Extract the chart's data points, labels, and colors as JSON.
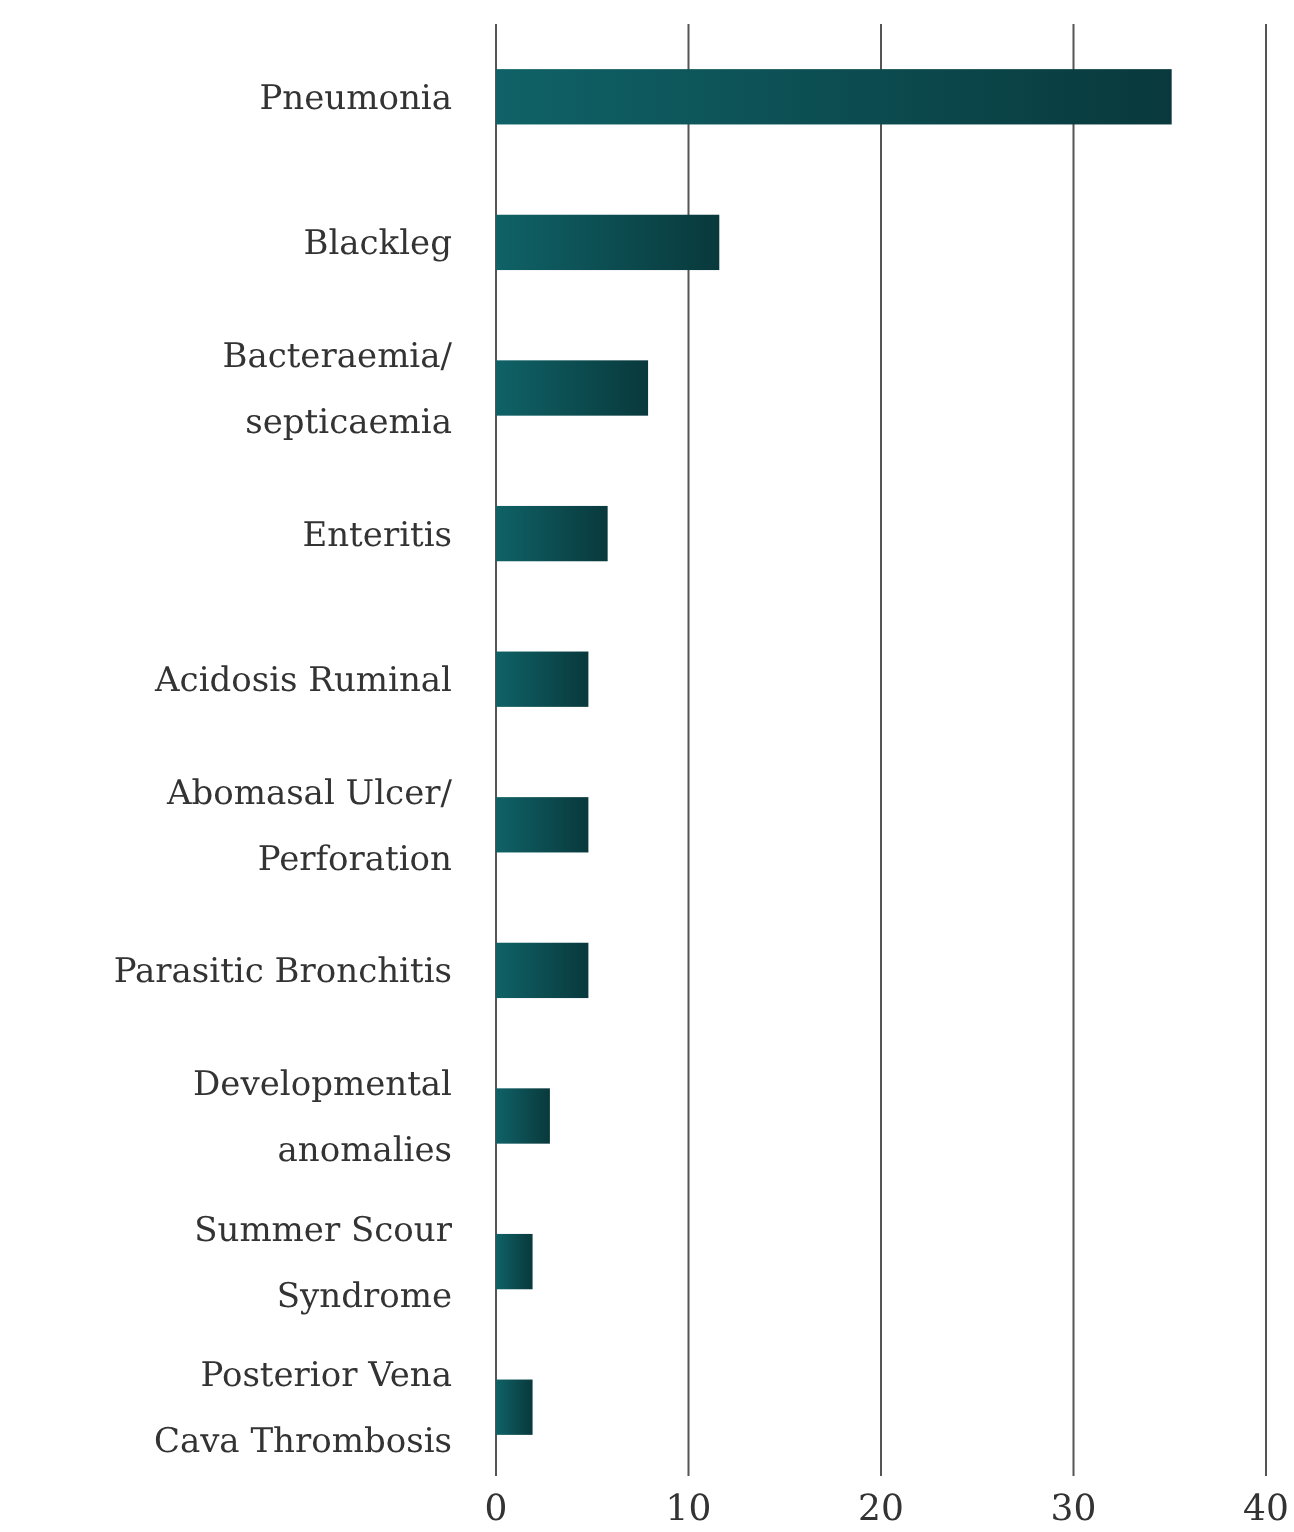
{
  "chart_data": {
    "type": "bar",
    "orientation": "horizontal",
    "categories": [
      "Pneumonia",
      "Blackleg",
      "Bacteraemia/\nsepticaemia",
      "Enteritis",
      "Acidosis Ruminal",
      "Abomasal Ulcer/\nPerforation",
      "Parasitic Bronchitis",
      "Developmental\nanomalies",
      "Summer Scour\nSyndrome",
      "Posterior Vena\nCava Thrombosis"
    ],
    "values": [
      35.1,
      11.6,
      7.9,
      5.8,
      4.8,
      4.8,
      4.8,
      2.8,
      1.9,
      1.9
    ],
    "color": "#0c4f53",
    "xlim": [
      0,
      40
    ],
    "xticks": [
      0,
      10,
      20,
      30,
      40
    ],
    "grid": "x"
  }
}
